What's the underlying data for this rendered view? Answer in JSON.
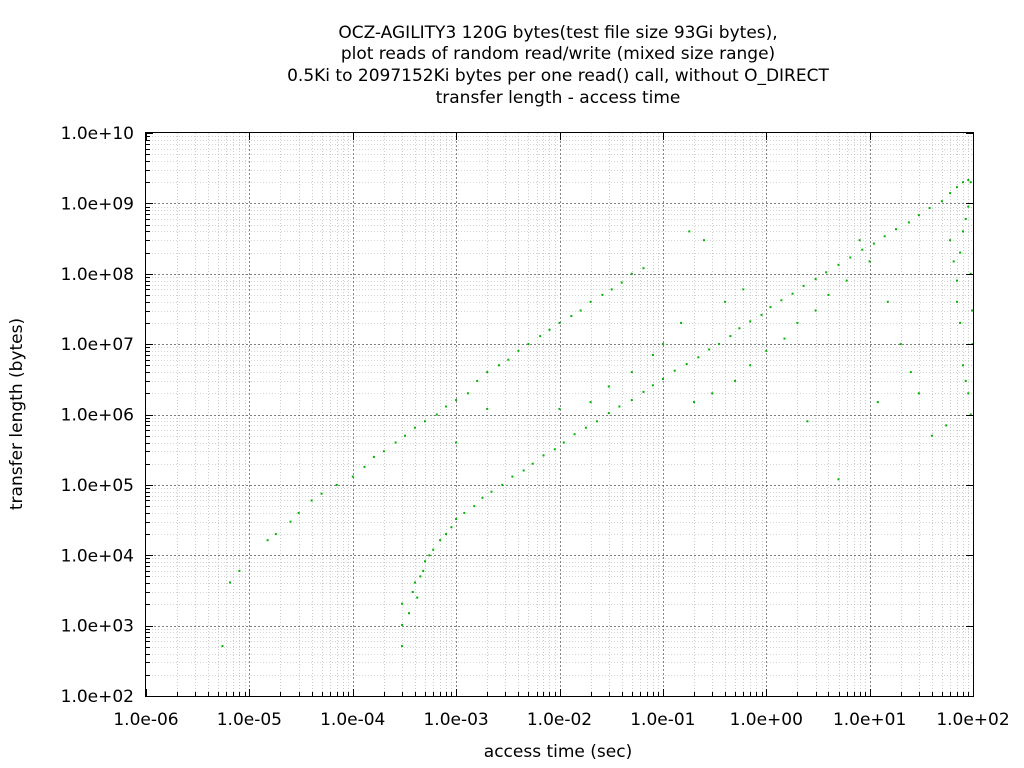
{
  "chart_data": {
    "type": "scatter",
    "title_lines": [
      "OCZ-AGILITY3 120G bytes(test file size 93Gi bytes),",
      "plot reads of random read/write (mixed size range)",
      "0.5Ki to 2097152Ki bytes per one read() call, without O_DIRECT",
      "transfer length - access time"
    ],
    "xlabel": "access time (sec)",
    "ylabel": "transfer length (bytes)",
    "xscale": "log",
    "yscale": "log",
    "xlim": [
      1e-06,
      100
    ],
    "ylim": [
      100,
      10000000000
    ],
    "x_ticks": [
      "1.0e-06",
      "1.0e-05",
      "1.0e-04",
      "1.0e-03",
      "1.0e-02",
      "1.0e-01",
      "1.0e+00",
      "1.0e+01",
      "1.0e+02"
    ],
    "y_ticks": [
      "1.0e+02",
      "1.0e+03",
      "1.0e+04",
      "1.0e+05",
      "1.0e+06",
      "1.0e+07",
      "1.0e+08",
      "1.0e+09",
      "1.0e+10"
    ],
    "grid": true,
    "legend": "none",
    "point_color": "#00b400",
    "series": [
      {
        "points": [
          [
            5.5e-06,
            512
          ],
          [
            6.5e-06,
            4096
          ],
          [
            8e-06,
            6000
          ],
          [
            1.5e-05,
            16384
          ],
          [
            1.8e-05,
            20000
          ],
          [
            2.5e-05,
            30000
          ],
          [
            3e-05,
            40000
          ],
          [
            4e-05,
            60000
          ],
          [
            5e-05,
            75000
          ],
          [
            7e-05,
            100000
          ],
          [
            0.0001,
            131072
          ],
          [
            0.00013,
            180000
          ],
          [
            0.00016,
            250000
          ],
          [
            0.0002,
            300000
          ],
          [
            0.00026,
            400000
          ],
          [
            0.00032,
            500000
          ],
          [
            0.0004,
            650000
          ],
          [
            0.0005,
            800000
          ],
          [
            0.00065,
            1000000
          ],
          [
            0.0008,
            1300000
          ],
          [
            0.001,
            1600000
          ],
          [
            0.0013,
            2000000
          ],
          [
            0.0016,
            3000000
          ],
          [
            0.002,
            4000000
          ],
          [
            0.0026,
            5000000
          ],
          [
            0.0032,
            6000000
          ],
          [
            0.004,
            8000000
          ],
          [
            0.005,
            10000000
          ],
          [
            0.0065,
            13000000
          ],
          [
            0.008,
            16000000
          ],
          [
            0.01,
            20000000
          ],
          [
            0.013,
            25000000
          ],
          [
            0.016,
            30000000
          ],
          [
            0.02,
            40000000
          ],
          [
            0.026,
            50000000
          ],
          [
            0.032,
            60000000
          ],
          [
            0.04,
            75000000
          ],
          [
            0.05,
            100000000
          ],
          [
            0.065,
            120000000
          ],
          [
            0.0003,
            512
          ],
          [
            0.0003,
            1024
          ],
          [
            0.0003,
            2048
          ],
          [
            0.00035,
            1500
          ],
          [
            0.00038,
            3000
          ],
          [
            0.0004,
            4096
          ],
          [
            0.00042,
            2500
          ],
          [
            0.00045,
            5000
          ],
          [
            0.00048,
            6000
          ],
          [
            0.0005,
            8192
          ],
          [
            0.00055,
            10000
          ],
          [
            0.0006,
            12000
          ],
          [
            0.0007,
            16384
          ],
          [
            0.0008,
            20000
          ],
          [
            0.0009,
            25000
          ],
          [
            0.001,
            32768
          ],
          [
            0.0012,
            40000
          ],
          [
            0.0015,
            50000
          ],
          [
            0.0018,
            65536
          ],
          [
            0.0022,
            80000
          ],
          [
            0.0028,
            100000
          ],
          [
            0.0035,
            131072
          ],
          [
            0.0045,
            160000
          ],
          [
            0.0055,
            200000
          ],
          [
            0.007,
            262144
          ],
          [
            0.009,
            320000
          ],
          [
            0.011,
            400000
          ],
          [
            0.014,
            524288
          ],
          [
            0.018,
            650000
          ],
          [
            0.023,
            800000
          ],
          [
            0.03,
            1048576
          ],
          [
            0.038,
            1300000
          ],
          [
            0.05,
            1600000
          ],
          [
            0.065,
            2097152
          ],
          [
            0.08,
            2600000
          ],
          [
            0.1,
            3200000
          ],
          [
            0.13,
            4194304
          ],
          [
            0.17,
            5200000
          ],
          [
            0.22,
            6500000
          ],
          [
            0.28,
            8388608
          ],
          [
            0.35,
            10000000
          ],
          [
            0.45,
            13000000
          ],
          [
            0.55,
            16777216
          ],
          [
            0.7,
            21000000
          ],
          [
            0.9,
            26000000
          ],
          [
            1.1,
            33554432
          ],
          [
            1.4,
            42000000
          ],
          [
            1.8,
            52000000
          ],
          [
            2.3,
            67108864
          ],
          [
            3,
            84000000
          ],
          [
            3.8,
            105000000
          ],
          [
            5,
            134217728
          ],
          [
            6.5,
            170000000
          ],
          [
            8.5,
            220000000
          ],
          [
            11,
            268435456
          ],
          [
            14,
            340000000
          ],
          [
            18,
            430000000
          ],
          [
            24,
            536870912
          ],
          [
            30,
            680000000
          ],
          [
            38,
            860000000
          ],
          [
            50,
            1073741824
          ],
          [
            60,
            1400000000
          ],
          [
            70,
            1700000000
          ],
          [
            80,
            2000000000
          ],
          [
            90,
            2147483648
          ],
          [
            95,
            2000000000
          ],
          [
            60,
            300000000
          ],
          [
            65,
            150000000
          ],
          [
            70,
            80000000
          ],
          [
            75,
            200000000
          ],
          [
            80,
            400000000
          ],
          [
            85,
            600000000
          ],
          [
            90,
            900000000
          ],
          [
            95,
            100000000
          ],
          [
            98,
            30000000
          ],
          [
            99,
            10000000
          ],
          [
            70,
            40000000
          ],
          [
            75,
            20000000
          ],
          [
            80,
            5000000
          ],
          [
            85,
            3000000
          ],
          [
            90,
            2000000
          ],
          [
            95,
            1000000
          ],
          [
            55,
            700000
          ],
          [
            40,
            500000
          ],
          [
            30,
            2000000
          ],
          [
            20,
            10000000
          ],
          [
            15,
            40000000
          ],
          [
            10,
            150000000
          ],
          [
            8,
            300000000
          ],
          [
            6,
            80000000
          ],
          [
            4,
            50000000
          ],
          [
            3,
            30000000
          ],
          [
            2,
            20000000
          ],
          [
            1.5,
            12000000
          ],
          [
            1,
            8000000
          ],
          [
            0.7,
            5000000
          ],
          [
            0.5,
            3000000
          ],
          [
            0.3,
            2000000
          ],
          [
            0.2,
            1500000
          ],
          [
            0.15,
            20000000
          ],
          [
            0.1,
            10000000
          ],
          [
            0.08,
            7000000
          ],
          [
            0.05,
            4000000
          ],
          [
            0.03,
            2500000
          ],
          [
            0.02,
            1500000
          ],
          [
            0.01,
            1200000
          ],
          [
            5,
            120000
          ],
          [
            0.001,
            400000
          ],
          [
            0.002,
            1200000
          ],
          [
            0.4,
            40000000
          ],
          [
            0.6,
            60000000
          ],
          [
            0.25,
            300000000
          ],
          [
            0.18,
            400000000
          ],
          [
            2.5,
            800000
          ],
          [
            12,
            1500000
          ],
          [
            25,
            4000000
          ]
        ]
      }
    ]
  }
}
